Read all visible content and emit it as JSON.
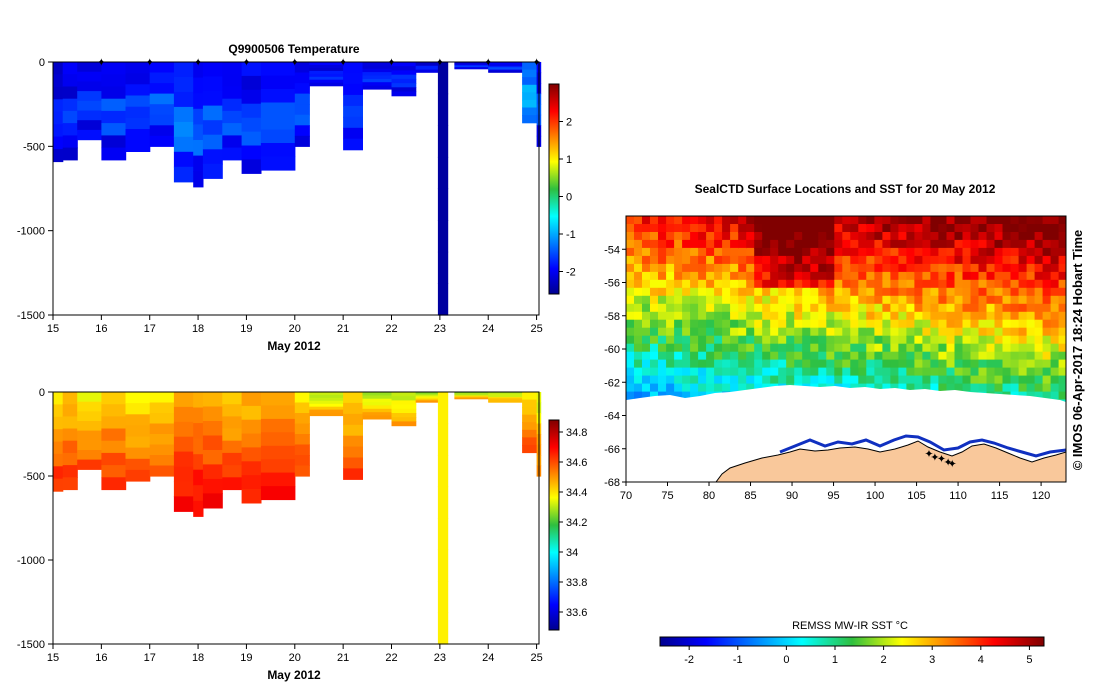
{
  "chart_data": [
    {
      "type": "heatmap",
      "title": "Q9900506  Temperature",
      "xlabel": "May 2012",
      "ylabel": "",
      "xlim": [
        15,
        25.05
      ],
      "ylim": [
        -1500,
        0
      ],
      "x_ticks": [
        "15",
        "16",
        "17",
        "18",
        "19",
        "20",
        "21",
        "22",
        "23",
        "24",
        "25"
      ],
      "y_ticks": [
        "0",
        "-500",
        "-1000",
        "-1500"
      ],
      "colorbar": {
        "range": [
          -2.6,
          3.0
        ],
        "ticks": [
          "2",
          "1",
          "0",
          "-1",
          "-2"
        ]
      },
      "profile_markers_day": [
        16,
        17,
        18,
        19,
        20,
        21,
        22,
        23,
        24,
        25
      ],
      "profiles": [
        {
          "day": 15.0,
          "depth": 590,
          "value": -2.1
        },
        {
          "day": 15.2,
          "depth": 580,
          "value": -2.1
        },
        {
          "day": 15.5,
          "depth": 460,
          "value": -2.0
        },
        {
          "day": 16.0,
          "depth": 580,
          "value": -2.0
        },
        {
          "day": 16.5,
          "depth": 530,
          "value": -2.0
        },
        {
          "day": 17.0,
          "depth": 500,
          "value": -1.9
        },
        {
          "day": 17.5,
          "depth": 710,
          "value": -1.8
        },
        {
          "day": 17.9,
          "depth": 740,
          "value": -1.9
        },
        {
          "day": 18.1,
          "depth": 690,
          "value": -1.9
        },
        {
          "day": 18.5,
          "depth": 580,
          "value": -2.0
        },
        {
          "day": 18.9,
          "depth": 660,
          "value": -2.0
        },
        {
          "day": 19.3,
          "depth": 640,
          "value": -2.0
        },
        {
          "day": 20.0,
          "depth": 500,
          "value": -2.0
        },
        {
          "day": 20.3,
          "depth": 140,
          "value": -2.1
        },
        {
          "day": 21.0,
          "depth": 520,
          "value": -2.0
        },
        {
          "day": 21.4,
          "depth": 160,
          "value": -2.1
        },
        {
          "day": 22.0,
          "depth": 200,
          "value": -2.1
        },
        {
          "day": 22.5,
          "depth": 60,
          "value": -2.2
        },
        {
          "day": 23.0,
          "depth": 1500,
          "value": -2.5
        },
        {
          "day": 23.3,
          "depth": 40,
          "value": -2.2
        },
        {
          "day": 24.0,
          "depth": 60,
          "value": -2.1
        },
        {
          "day": 24.7,
          "depth": 360,
          "value": -1.4
        },
        {
          "day": 25.0,
          "depth": 500,
          "value": -2.0
        }
      ]
    },
    {
      "type": "heatmap",
      "title": "",
      "xlabel": "May 2012",
      "ylabel": "",
      "xlim": [
        15,
        25.05
      ],
      "ylim": [
        -1500,
        0
      ],
      "x_ticks": [
        "15",
        "16",
        "17",
        "18",
        "19",
        "20",
        "21",
        "22",
        "23",
        "24",
        "25"
      ],
      "y_ticks": [
        "0",
        "-500",
        "-1000",
        "-1500"
      ],
      "colorbar": {
        "range": [
          33.48,
          34.88
        ],
        "ticks": [
          "34.8",
          "34.6",
          "34.4",
          "34.2",
          "34",
          "33.8",
          "33.6"
        ]
      },
      "profiles": [
        {
          "day": 15.0,
          "depth": 590,
          "value": 34.55
        },
        {
          "day": 15.2,
          "depth": 580,
          "value": 34.55
        },
        {
          "day": 15.5,
          "depth": 460,
          "value": 34.5
        },
        {
          "day": 16.0,
          "depth": 580,
          "value": 34.55
        },
        {
          "day": 16.5,
          "depth": 530,
          "value": 34.5
        },
        {
          "day": 17.0,
          "depth": 500,
          "value": 34.5
        },
        {
          "day": 17.5,
          "depth": 710,
          "value": 34.6
        },
        {
          "day": 17.9,
          "depth": 740,
          "value": 34.62
        },
        {
          "day": 18.1,
          "depth": 690,
          "value": 34.6
        },
        {
          "day": 18.5,
          "depth": 580,
          "value": 34.55
        },
        {
          "day": 18.9,
          "depth": 660,
          "value": 34.58
        },
        {
          "day": 19.3,
          "depth": 640,
          "value": 34.58
        },
        {
          "day": 20.0,
          "depth": 500,
          "value": 34.52
        },
        {
          "day": 20.3,
          "depth": 140,
          "value": 34.4
        },
        {
          "day": 21.0,
          "depth": 520,
          "value": 34.52
        },
        {
          "day": 21.4,
          "depth": 160,
          "value": 34.4
        },
        {
          "day": 22.0,
          "depth": 200,
          "value": 34.4
        },
        {
          "day": 22.5,
          "depth": 60,
          "value": 34.38
        },
        {
          "day": 23.0,
          "depth": 1500,
          "value": 34.38
        },
        {
          "day": 23.3,
          "depth": 40,
          "value": 34.36
        },
        {
          "day": 24.0,
          "depth": 60,
          "value": 34.38
        },
        {
          "day": 24.7,
          "depth": 360,
          "value": 34.5
        },
        {
          "day": 25.0,
          "depth": 500,
          "value": 34.45
        }
      ]
    },
    {
      "type": "heatmap",
      "title": "SealCTD Surface Locations and SST for 20 May 2012",
      "xlabel": "",
      "ylabel": "",
      "xlim": [
        70,
        123
      ],
      "ylim": [
        -68,
        -52
      ],
      "x_ticks": [
        "70",
        "75",
        "80",
        "85",
        "90",
        "95",
        "100",
        "105",
        "110",
        "115",
        "120"
      ],
      "y_ticks": [
        "-54",
        "-56",
        "-58",
        "-60",
        "-62",
        "-64",
        "-66",
        "-68"
      ],
      "colorbar": {
        "label": "REMSS MW-IR SST °C",
        "range": [
          -2.6,
          5.3
        ],
        "ticks": [
          "-2",
          "-1",
          "0",
          "1",
          "2",
          "3",
          "4",
          "5"
        ]
      },
      "seal_track": [
        [
          106.5,
          -66.3
        ],
        [
          107.2,
          -66.5
        ],
        [
          108.0,
          -66.6
        ],
        [
          108.8,
          -66.8
        ],
        [
          109.3,
          -66.9
        ]
      ],
      "credit": "© IMOS 06-Apr-2017 18:24 Hobart Time"
    }
  ]
}
